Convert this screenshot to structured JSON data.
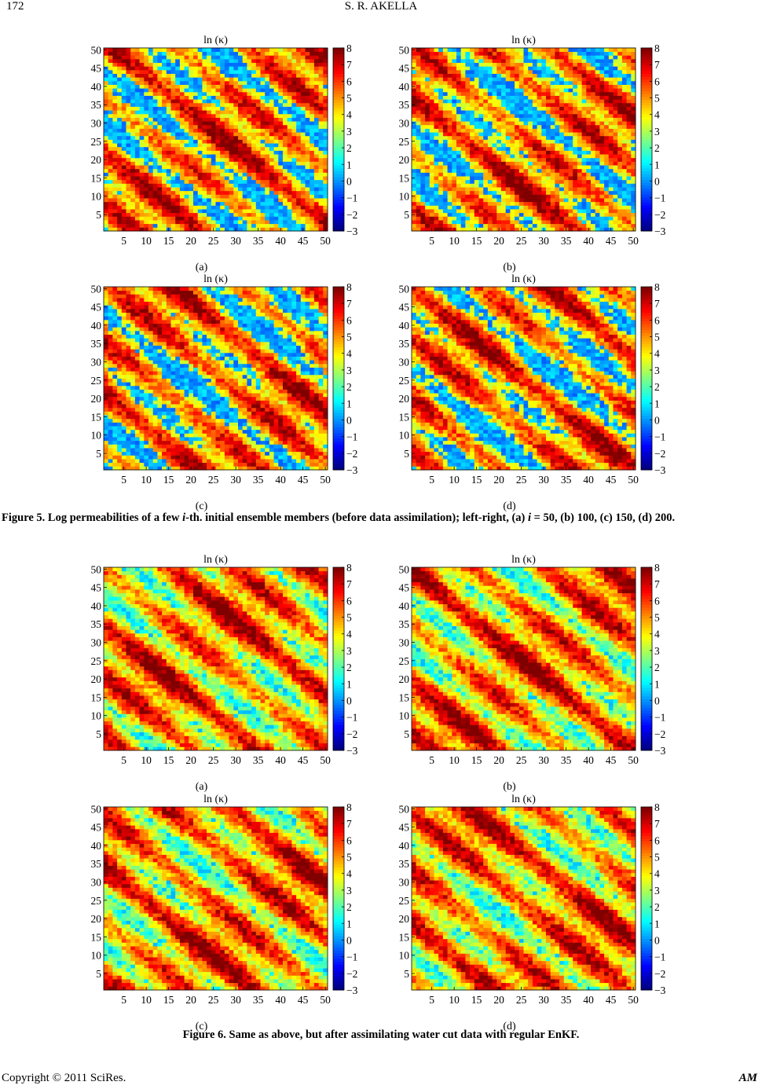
{
  "header": {
    "page_number": "172",
    "running_head": "S. R. AKELLA"
  },
  "figure5": {
    "caption_prefix": "Figure 5. Log permeabilities of a few ",
    "caption_i": "i",
    "caption_mid": "-th. initial ensemble members (before data assimilation); left-right, (a) ",
    "caption_i2": "i",
    "caption_end": " = 50, (b) 100, (c) 150, (d) 200.",
    "panels": [
      {
        "label": "(a)",
        "title": "ln (κ)"
      },
      {
        "label": "(b)",
        "title": "ln (κ)"
      },
      {
        "label": "(c)",
        "title": "ln (κ)"
      },
      {
        "label": "(d)",
        "title": "ln (κ)"
      }
    ]
  },
  "figure6": {
    "caption": "Figure 6. Same as above, but after assimilating water cut data with regular EnKF.",
    "panels": [
      {
        "label": "(a)",
        "title": "ln (κ)"
      },
      {
        "label": "(b)",
        "title": "ln (κ)"
      },
      {
        "label": "(c)",
        "title": "ln (κ)"
      },
      {
        "label": "(d)",
        "title": "ln (κ)"
      }
    ]
  },
  "chart_data": [
    {
      "type": "heatmap",
      "title": "ln (κ)",
      "panel": "Figure 5 (a)",
      "x_ticks": [
        5,
        10,
        15,
        20,
        25,
        30,
        35,
        40,
        45,
        50
      ],
      "y_ticks": [
        5,
        10,
        15,
        20,
        25,
        30,
        35,
        40,
        45,
        50
      ],
      "xlim": [
        0.5,
        50.5
      ],
      "ylim": [
        0.5,
        50.5
      ],
      "grid_size": [
        50,
        50
      ],
      "colorbar_ticks": [
        8,
        7,
        6,
        5,
        4,
        3,
        2,
        1,
        0,
        -1,
        -2,
        -3
      ],
      "colorbar_range": [
        -3,
        8
      ],
      "colormap": "jet"
    },
    {
      "type": "heatmap",
      "title": "ln (κ)",
      "panel": "Figure 5 (b)",
      "x_ticks": [
        5,
        10,
        15,
        20,
        25,
        30,
        35,
        40,
        45,
        50
      ],
      "y_ticks": [
        5,
        10,
        15,
        20,
        25,
        30,
        35,
        40,
        45,
        50
      ],
      "xlim": [
        0.5,
        50.5
      ],
      "ylim": [
        0.5,
        50.5
      ],
      "grid_size": [
        50,
        50
      ],
      "colorbar_ticks": [
        8,
        7,
        6,
        5,
        4,
        3,
        2,
        1,
        0,
        -1,
        -2,
        -3
      ],
      "colorbar_range": [
        -3,
        8
      ],
      "colormap": "jet"
    },
    {
      "type": "heatmap",
      "title": "ln (κ)",
      "panel": "Figure 5 (c)",
      "x_ticks": [
        5,
        10,
        15,
        20,
        25,
        30,
        35,
        40,
        45,
        50
      ],
      "y_ticks": [
        5,
        10,
        15,
        20,
        25,
        30,
        35,
        40,
        45,
        50
      ],
      "xlim": [
        0.5,
        50.5
      ],
      "ylim": [
        0.5,
        50.5
      ],
      "grid_size": [
        50,
        50
      ],
      "colorbar_ticks": [
        8,
        7,
        6,
        5,
        4,
        3,
        2,
        1,
        0,
        -1,
        -2,
        -3
      ],
      "colorbar_range": [
        -3,
        8
      ],
      "colormap": "jet"
    },
    {
      "type": "heatmap",
      "title": "ln (κ)",
      "panel": "Figure 5 (d)",
      "x_ticks": [
        5,
        10,
        15,
        20,
        25,
        30,
        35,
        40,
        45,
        50
      ],
      "y_ticks": [
        5,
        10,
        15,
        20,
        25,
        30,
        35,
        40,
        45,
        50
      ],
      "xlim": [
        0.5,
        50.5
      ],
      "ylim": [
        0.5,
        50.5
      ],
      "grid_size": [
        50,
        50
      ],
      "colorbar_ticks": [
        8,
        7,
        6,
        5,
        4,
        3,
        2,
        1,
        0,
        -1,
        -2,
        -3
      ],
      "colorbar_range": [
        -3,
        8
      ],
      "colormap": "jet"
    },
    {
      "type": "heatmap",
      "title": "ln (κ)",
      "panel": "Figure 6 (a)",
      "x_ticks": [
        5,
        10,
        15,
        20,
        25,
        30,
        35,
        40,
        45,
        50
      ],
      "y_ticks": [
        5,
        10,
        15,
        20,
        25,
        30,
        35,
        40,
        45,
        50
      ],
      "xlim": [
        0.5,
        50.5
      ],
      "ylim": [
        0.5,
        50.5
      ],
      "grid_size": [
        50,
        50
      ],
      "colorbar_ticks": [
        8,
        7,
        6,
        5,
        4,
        3,
        2,
        1,
        0,
        -1,
        -2,
        -3
      ],
      "colorbar_range": [
        -3,
        8
      ],
      "colormap": "jet"
    },
    {
      "type": "heatmap",
      "title": "ln (κ)",
      "panel": "Figure 6 (b)",
      "x_ticks": [
        5,
        10,
        15,
        20,
        25,
        30,
        35,
        40,
        45,
        50
      ],
      "y_ticks": [
        5,
        10,
        15,
        20,
        25,
        30,
        35,
        40,
        45,
        50
      ],
      "xlim": [
        0.5,
        50.5
      ],
      "ylim": [
        0.5,
        50.5
      ],
      "grid_size": [
        50,
        50
      ],
      "colorbar_ticks": [
        8,
        7,
        6,
        5,
        4,
        3,
        2,
        1,
        0,
        -1,
        -2,
        -3
      ],
      "colorbar_range": [
        -3,
        8
      ],
      "colormap": "jet"
    },
    {
      "type": "heatmap",
      "title": "ln (κ)",
      "panel": "Figure 6 (c)",
      "x_ticks": [
        5,
        10,
        15,
        20,
        25,
        30,
        35,
        40,
        45,
        50
      ],
      "y_ticks": [
        5,
        10,
        15,
        20,
        25,
        30,
        35,
        40,
        45,
        50
      ],
      "xlim": [
        0.5,
        50.5
      ],
      "ylim": [
        0.5,
        50.5
      ],
      "grid_size": [
        50,
        50
      ],
      "colorbar_ticks": [
        8,
        7,
        6,
        5,
        4,
        3,
        2,
        1,
        0,
        -1,
        -2,
        -3
      ],
      "colorbar_range": [
        -3,
        8
      ],
      "colormap": "jet"
    },
    {
      "type": "heatmap",
      "title": "ln (κ)",
      "panel": "Figure 6 (d)",
      "x_ticks": [
        5,
        10,
        15,
        20,
        25,
        30,
        35,
        40,
        45,
        50
      ],
      "y_ticks": [
        5,
        10,
        15,
        20,
        25,
        30,
        35,
        40,
        45,
        50
      ],
      "xlim": [
        0.5,
        50.5
      ],
      "ylim": [
        0.5,
        50.5
      ],
      "grid_size": [
        50,
        50
      ],
      "colorbar_ticks": [
        8,
        7,
        6,
        5,
        4,
        3,
        2,
        1,
        0,
        -1,
        -2,
        -3
      ],
      "colorbar_range": [
        -3,
        8
      ],
      "colormap": "jet"
    }
  ],
  "footer": {
    "copyright": "Copyright © 2011 SciRes.",
    "journal": "AM"
  }
}
